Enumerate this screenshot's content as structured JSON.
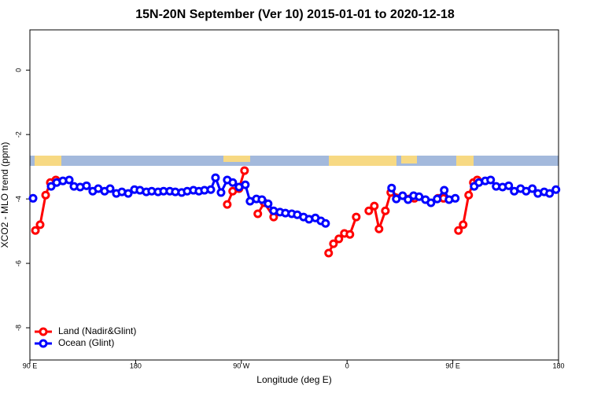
{
  "chart_data": {
    "type": "line",
    "title": "15N-20N September (Ver 10)   2015-01-01 to 2020-12-18",
    "xlabel": "Longitude (deg E)",
    "ylabel": "XCO2 - MLO trend (ppm)",
    "xlim": [
      90,
      540
    ],
    "ylim": [
      -9,
      1.25
    ],
    "xticks": [
      {
        "value": 90,
        "label": "90 E"
      },
      180,
      {
        "value": 270,
        "label": "90 W"
      },
      {
        "value": 360,
        "label": "0"
      },
      {
        "value": 450,
        "label": "90 E"
      },
      {
        "value": 540,
        "label": "180"
      }
    ],
    "yticks": [
      0,
      -2,
      -4,
      -6,
      -8
    ],
    "legend": "bottom-left",
    "series": [
      {
        "name": "Land (Nadir&Glint)",
        "color": "#ff0000",
        "x": [
          94.7,
          98.7,
          103.4,
          107.4,
          112.1,
          null,
          258,
          262.6,
          268,
          272.7,
          null,
          284,
          289.5,
          297.5,
          null,
          344.3,
          348.4,
          353,
          357.7,
          362.4,
          367.8,
          null,
          378.5,
          383.2,
          387.2,
          392.6,
          397.2,
          412.6,
          417.3,
          null,
          437.4,
          442.1,
          null,
          454.8,
          458.8,
          463.5,
          467.5,
          470.8
        ],
        "values": [
          -4.98,
          -4.8,
          -3.88,
          -3.49,
          -3.41,
          null,
          -4.17,
          -3.76,
          -3.68,
          -3.12,
          null,
          -4.46,
          -4.12,
          -4.56,
          null,
          -5.68,
          -5.39,
          -5.24,
          -5.07,
          -5.1,
          -4.56,
          null,
          -4.37,
          -4.22,
          -4.93,
          -4.37,
          -3.8,
          -4.0,
          -3.98,
          null,
          -3.98,
          -3.98,
          null,
          -4.98,
          -4.8,
          -3.88,
          -3.49,
          -3.41
        ]
      },
      {
        "name": "Ocean (Glint)",
        "color": "#0000ff",
        "x": [
          92.7,
          null,
          108.1,
          112.8,
          118.1,
          123.5,
          127.5,
          132.8,
          138.2,
          143.5,
          148.2,
          153.6,
          158.3,
          163.6,
          168.3,
          173.7,
          179.0,
          183.7,
          189.1,
          193.7,
          199.1,
          203.8,
          209.1,
          213.8,
          219.2,
          223.9,
          229.2,
          233.9,
          238.6,
          244.0,
          248.0,
          252.7,
          258.0,
          262.7,
          268.0,
          273.4,
          277.4,
          282.8,
          287.5,
          292.8,
          297.5,
          302.9,
          307.5,
          312.9,
          317.6,
          322.9,
          327.6,
          333.0,
          337.7,
          341.7,
          null,
          397.9,
          401.9,
          407.3,
          411.9,
          416.6,
          421.3,
          426.7,
          431.4,
          436.7,
          442.7,
          446.8,
          452.1,
          null,
          468.2,
          472.2,
          477.6,
          482.2,
          486.9,
          492.3,
          497.6,
          502.3,
          507.7,
          512.4,
          517.7,
          522.4,
          527.8,
          532.4,
          537.8
        ],
        "values": [
          -3.98,
          null,
          -3.61,
          -3.49,
          -3.44,
          -3.41,
          -3.61,
          -3.63,
          -3.59,
          -3.76,
          -3.68,
          -3.76,
          -3.68,
          -3.83,
          -3.78,
          -3.83,
          -3.71,
          -3.73,
          -3.78,
          -3.76,
          -3.78,
          -3.76,
          -3.76,
          -3.78,
          -3.8,
          -3.76,
          -3.73,
          -3.76,
          -3.73,
          -3.71,
          -3.34,
          -3.8,
          -3.41,
          -3.49,
          -3.63,
          -3.56,
          -4.07,
          -4.0,
          -4.02,
          -4.15,
          -4.37,
          -4.41,
          -4.44,
          -4.46,
          -4.49,
          -4.56,
          -4.63,
          -4.59,
          -4.68,
          -4.76,
          null,
          -3.66,
          -4.0,
          -3.9,
          -4.02,
          -3.9,
          -3.93,
          -4.02,
          -4.12,
          -4.0,
          -3.73,
          -4.02,
          -3.98,
          null,
          -3.61,
          -3.49,
          -3.44,
          -3.41,
          -3.61,
          -3.63,
          -3.59,
          -3.76,
          -3.68,
          -3.76,
          -3.68,
          -3.83,
          -3.78,
          -3.83,
          -3.71
        ]
      }
    ]
  }
}
